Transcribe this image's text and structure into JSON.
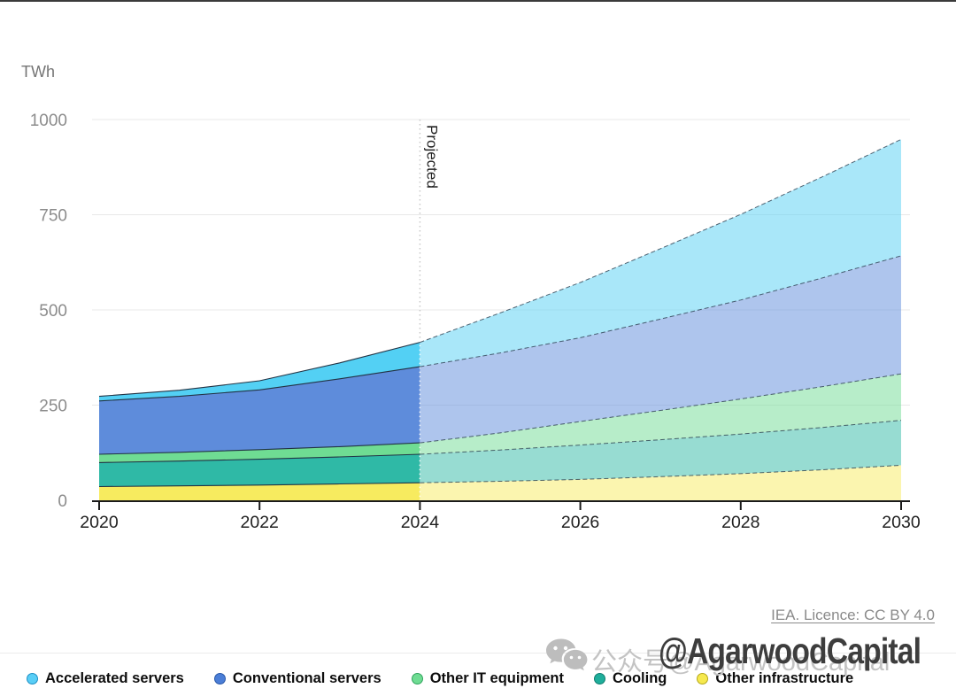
{
  "page": {
    "unit_label": "TWh",
    "attribution": "IEA. Licence: CC BY 4.0"
  },
  "watermark": {
    "icon": "wechat-icon",
    "gray_text": "公众号@AgarwoodCapital",
    "bold_text": "@AgarwoodCapital"
  },
  "chart_data": {
    "type": "area",
    "stacked": true,
    "title": "",
    "ylabel": "TWh",
    "xlabel": "",
    "x": [
      2020,
      2021,
      2022,
      2023,
      2024,
      2025,
      2026,
      2027,
      2028,
      2029,
      2030
    ],
    "x_tick_labels": [
      "2020",
      "2022",
      "2024",
      "2026",
      "2028",
      "2030"
    ],
    "y_ticks": [
      0,
      250,
      500,
      750,
      1000
    ],
    "ylim": [
      0,
      1000
    ],
    "grid": true,
    "projection_start_year": 2024,
    "projection_label": "Projected",
    "stack_order_bottom_to_top": [
      "other_infrastructure",
      "cooling",
      "other_it_equipment",
      "conventional_servers",
      "accelerated_servers"
    ],
    "series": [
      {
        "id": "accelerated_servers",
        "name": "Accelerated servers",
        "color": "#53D0F4",
        "values": [
          12,
          16,
          24,
          42,
          64,
          105,
          145,
          185,
          225,
          265,
          306
        ]
      },
      {
        "id": "conventional_servers",
        "name": "Conventional servers",
        "color": "#5E8CDB",
        "values": [
          140,
          147,
          157,
          178,
          200,
          210,
          220,
          240,
          260,
          285,
          310
        ]
      },
      {
        "id": "other_it_equipment",
        "name": "Other IT equipment",
        "color": "#6FDC93",
        "values": [
          22,
          23,
          25,
          27,
          30,
          45,
          62,
          77,
          92,
          107,
          122
        ]
      },
      {
        "id": "cooling",
        "name": "Cooling",
        "color": "#2FB9A6",
        "values": [
          63,
          65,
          68,
          71,
          75,
          82,
          90,
          97,
          104,
          111,
          118
        ]
      },
      {
        "id": "other_infrastructure",
        "name": "Other infrastructure",
        "color": "#F7EB5F",
        "values": [
          36,
          38,
          40,
          43,
          46,
          50,
          55,
          62,
          70,
          80,
          92
        ]
      }
    ],
    "style": {
      "boundary_line_color": "#223344",
      "projected_fill_opacity": 0.5,
      "grid_color": "#e8e8e8",
      "axis_color": "#1a1a1a",
      "tick_label_color": "#212121",
      "y_label_color": "#8c8c8c",
      "divider_line_color": "#c9c9c9"
    }
  },
  "legend": {
    "items": [
      {
        "label": "Accelerated servers",
        "color": "#59CEF6",
        "border": "#1D8FC4"
      },
      {
        "label": "Conventional servers",
        "color": "#4B7ED7",
        "border": "#2857A8"
      },
      {
        "label": "Other IT equipment",
        "color": "#6FDC93",
        "border": "#2FA35C"
      },
      {
        "label": "Cooling",
        "color": "#1FAE9B",
        "border": "#0E7D6F"
      },
      {
        "label": "Other infrastructure",
        "color": "#F6E94E",
        "border": "#B5A81C"
      }
    ]
  }
}
